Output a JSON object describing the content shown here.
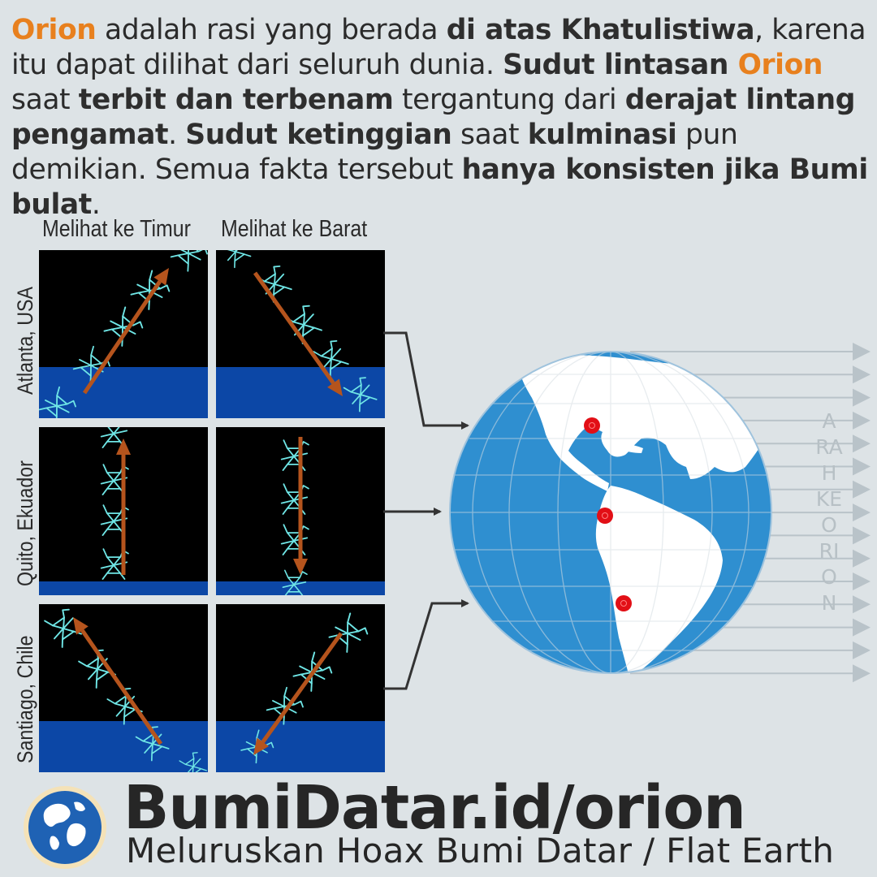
{
  "intro": {
    "s1": "Orion",
    "s2": " adalah rasi yang berada ",
    "s3": "di atas Khatulistiwa",
    "s4": ", karena itu dapat dilihat dari seluruh dunia. ",
    "s5": "Sudut lintasan ",
    "s6": "Orion",
    "s7": " saat ",
    "s8": "terbit dan terbenam",
    "s9": " tergantung dari ",
    "s10": "derajat lintang pengamat",
    "s11": ". ",
    "s12": "Sudut ketinggian",
    "s13": " saat ",
    "s14": "kulminasi",
    "s15": " pun demikian. Semua fakta tersebut ",
    "s16": "hanya konsisten jika Bumi bulat",
    "s17": "."
  },
  "columns": {
    "east": "Melihat ke Timur",
    "west": "Melihat ke Barat"
  },
  "rows": {
    "atlanta": "Atlanta, USA",
    "quito": "Quito, Ekuador",
    "santiago": "Santiago, Chile"
  },
  "globe_label": "ARAH KE ORION",
  "brand": {
    "url": "BumiDatar.id/orion",
    "tagline": "Meluruskan Hoax Bumi Datar / Flat Earth"
  },
  "colors": {
    "accent": "#e8801e",
    "sky": "#000000",
    "horizon": "#0c47a6",
    "ocean": "#2f8fd0",
    "arrow": "#b5541d",
    "constellation": "#6fe6e6",
    "marker": "#e20f16"
  }
}
